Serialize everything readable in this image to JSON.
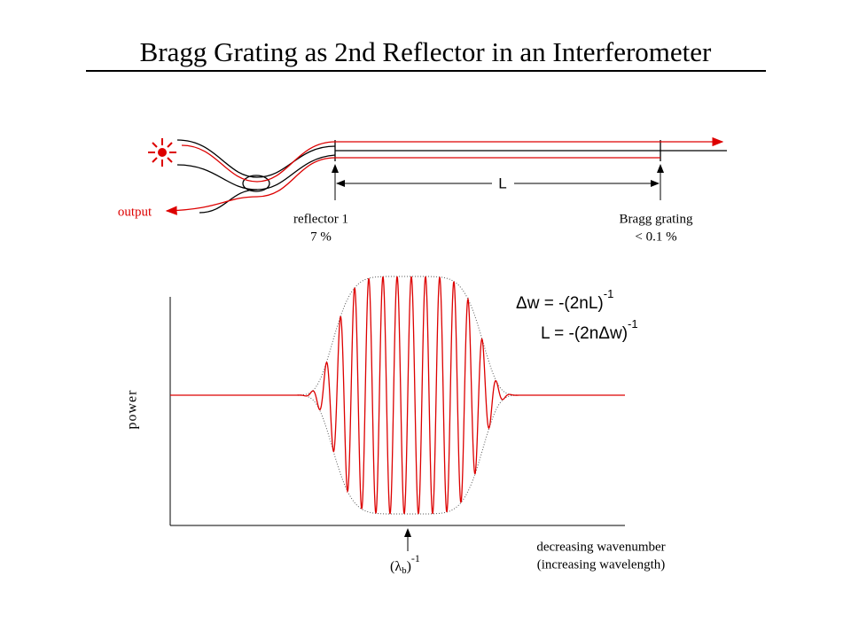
{
  "header": {
    "title": "Bragg Grating as 2nd Reflector in an Interferometer"
  },
  "top_diagram": {
    "output_label": "output",
    "length_label": "L",
    "reflector_1": {
      "name": "reflector 1",
      "reflectivity": "7 %"
    },
    "bragg_grating": {
      "name": "Bragg grating",
      "reflectivity": "< 0.1 %"
    }
  },
  "plot": {
    "y_axis_label": "power",
    "equations": [
      {
        "text": "Δw = -(2nL)",
        "exponent": "-1"
      },
      {
        "text": "L = -(2nΔw)",
        "exponent": "-1"
      }
    ],
    "marker": {
      "open": "(λ",
      "subscript": "b",
      "close": ")",
      "exponent": "-1"
    },
    "x_axis_label": [
      "decreasing wavenumber",
      "(increasing wavelength)"
    ]
  }
}
